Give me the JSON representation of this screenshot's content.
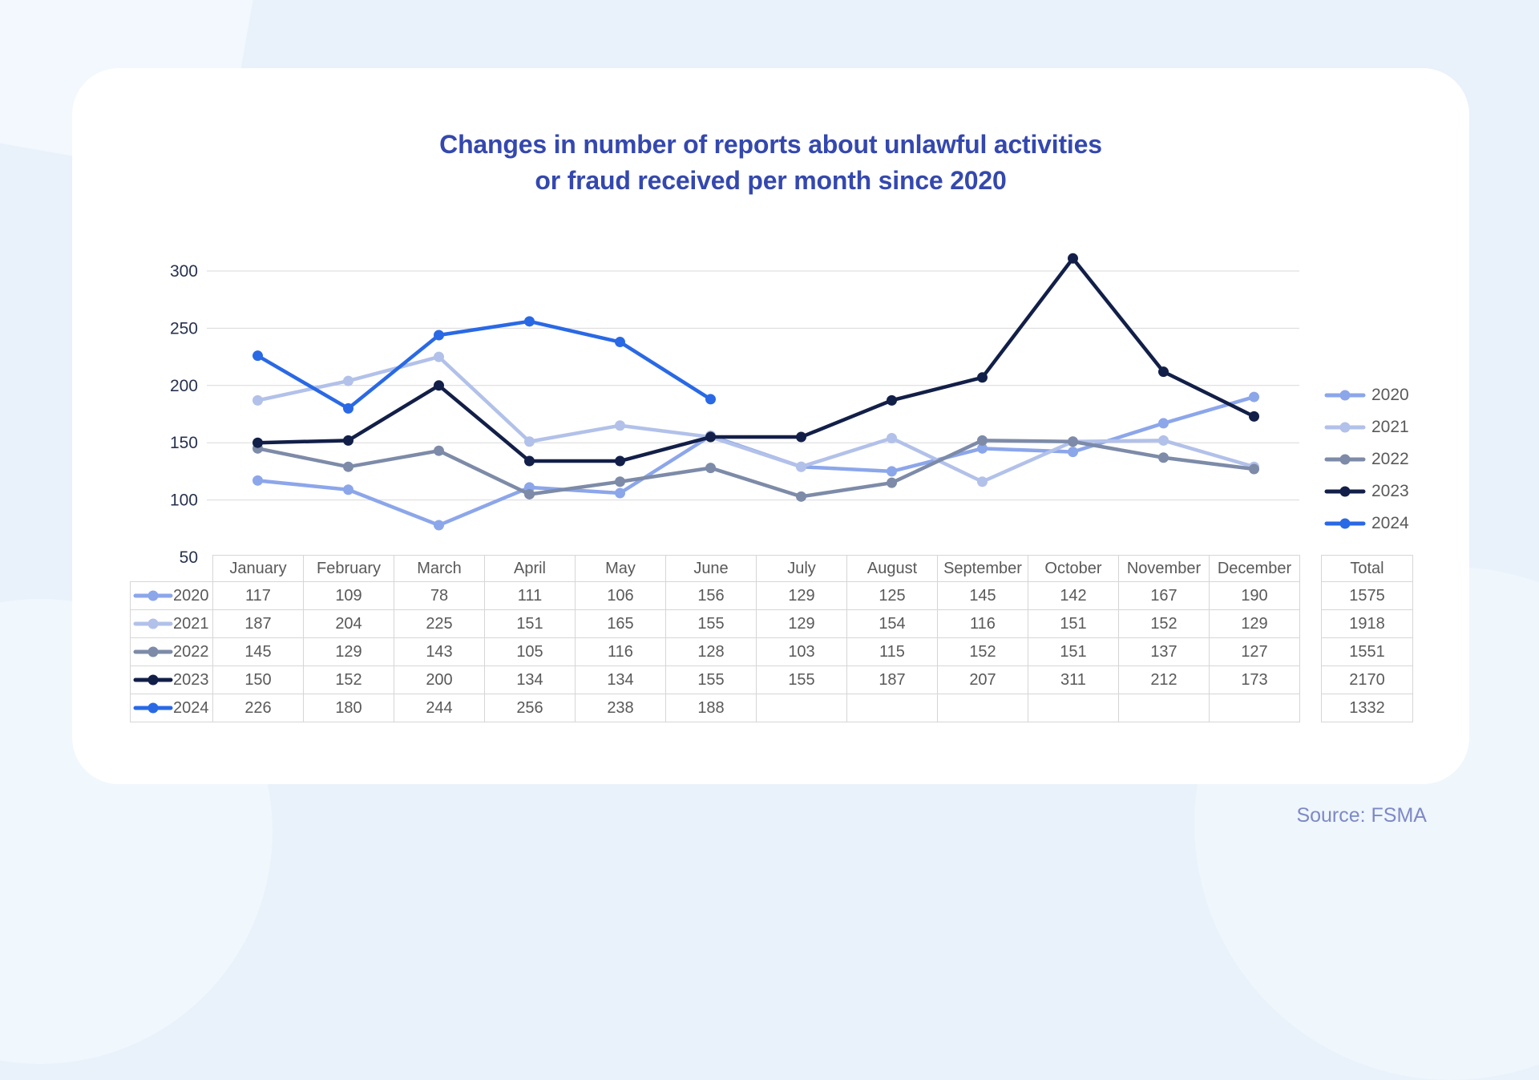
{
  "page": {
    "background_color": "#E9F1FA",
    "card_color": "#FFFFFF",
    "source_label": "Source: FSMA"
  },
  "title": {
    "line1": "Changes in number of reports about unlawful activities",
    "line2": "or fraud received per month since 2020",
    "color": "#3448AF"
  },
  "chart_data": {
    "type": "line",
    "title": "Changes in number of reports about unlawful activities or fraud received per month since 2020",
    "categories": [
      "January",
      "February",
      "March",
      "April",
      "May",
      "June",
      "July",
      "August",
      "September",
      "October",
      "November",
      "December"
    ],
    "series": [
      {
        "name": "2020",
        "color": "#8CA6EA",
        "values": [
          117,
          109,
          78,
          111,
          106,
          156,
          129,
          125,
          145,
          142,
          167,
          190
        ],
        "total": 1575
      },
      {
        "name": "2021",
        "color": "#B2C1E9",
        "values": [
          187,
          204,
          225,
          151,
          165,
          155,
          129,
          154,
          116,
          151,
          152,
          129
        ],
        "total": 1918
      },
      {
        "name": "2022",
        "color": "#7D8BA8",
        "values": [
          145,
          129,
          143,
          105,
          116,
          128,
          103,
          115,
          152,
          151,
          137,
          127
        ],
        "total": 1551
      },
      {
        "name": "2023",
        "color": "#121F48",
        "values": [
          150,
          152,
          200,
          134,
          134,
          155,
          155,
          187,
          207,
          311,
          212,
          173
        ],
        "total": 2170
      },
      {
        "name": "2024",
        "color": "#2A69E5",
        "values": [
          226,
          180,
          244,
          256,
          238,
          188,
          null,
          null,
          null,
          null,
          null,
          null
        ],
        "total": 1332
      }
    ],
    "ylim": [
      50,
      320
    ],
    "yticks": [
      50,
      100,
      150,
      200,
      250,
      300
    ],
    "grid": true,
    "grid_color": "#D9D9D9",
    "tick_label_color": "#27324E",
    "legend_position": "right",
    "legend_labels": [
      "2020",
      "2021",
      "2022",
      "2023",
      "2024"
    ],
    "table_total_header": "Total",
    "xlabel": "",
    "ylabel": ""
  }
}
